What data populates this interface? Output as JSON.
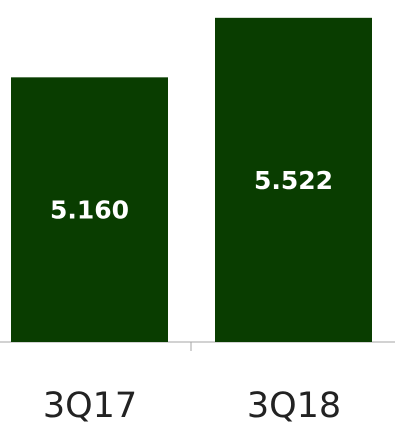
{
  "chart_data": {
    "type": "bar",
    "categories": [
      "3Q17",
      "3Q18"
    ],
    "values": [
      5.16,
      5.522
    ],
    "value_labels": [
      "5.160",
      "5.522"
    ],
    "ylim": [
      3.55,
      5.6
    ],
    "grid": false,
    "legend": "none",
    "bar_color": "#093d00",
    "axis_color": "#a6a6a6"
  }
}
